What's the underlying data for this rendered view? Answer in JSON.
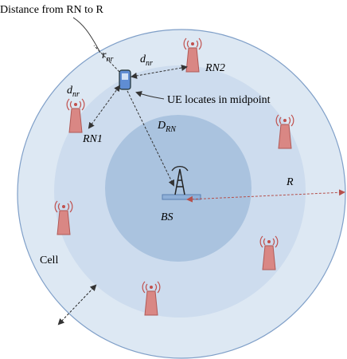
{
  "title": "Distance from RN to R",
  "labels": {
    "r_nr": {
      "main": "r",
      "sub": "nr"
    },
    "d_nr_right": {
      "main": "d",
      "sub": "nr"
    },
    "d_nr_left": {
      "main": "d",
      "sub": "nr"
    },
    "D_RN": {
      "main": "D",
      "sub": "RN"
    },
    "R": "R",
    "BS": "BS",
    "cell": "Cell",
    "ue": "UE locates in midpoint",
    "rn1": "RN1",
    "rn2": "RN2"
  }
}
